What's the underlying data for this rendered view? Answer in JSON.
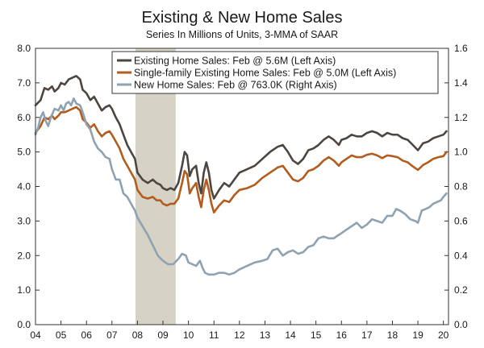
{
  "chart_data": {
    "type": "line",
    "title": "Existing & New Home Sales",
    "subtitle": "Series In Millions of Units, 3-MMA of SAAR",
    "x_ticks": [
      "04",
      "05",
      "06",
      "07",
      "08",
      "09",
      "10",
      "11",
      "12",
      "13",
      "14",
      "15",
      "16",
      "17",
      "18",
      "19",
      "20"
    ],
    "x_range": [
      2004.0,
      2020.2
    ],
    "left_axis": {
      "ylim": [
        0,
        8
      ],
      "ticks": [
        "0.0",
        "1.0",
        "2.0",
        "3.0",
        "4.0",
        "5.0",
        "6.0",
        "7.0",
        "8.0"
      ]
    },
    "right_axis": {
      "ylim": [
        0,
        1.6
      ],
      "ticks": [
        "0.0",
        "0.2",
        "0.4",
        "0.6",
        "0.8",
        "1.0",
        "1.2",
        "1.4",
        "1.6"
      ]
    },
    "recession_shade": {
      "start": 2007.92,
      "end": 2009.5,
      "color": "#d6d2c6"
    },
    "legend": {
      "placement": "top-right"
    },
    "series": [
      {
        "name": "Existing Home Sales: Feb @ 5.6M (Left Axis)",
        "axis": "left",
        "color": "#4d4640",
        "points": [
          [
            2004.0,
            6.35
          ],
          [
            2004.2,
            6.5
          ],
          [
            2004.35,
            6.85
          ],
          [
            2004.5,
            6.8
          ],
          [
            2004.65,
            6.9
          ],
          [
            2004.75,
            6.75
          ],
          [
            2004.9,
            6.85
          ],
          [
            2005.0,
            7.0
          ],
          [
            2005.15,
            6.95
          ],
          [
            2005.3,
            7.1
          ],
          [
            2005.45,
            7.15
          ],
          [
            2005.6,
            7.2
          ],
          [
            2005.75,
            7.1
          ],
          [
            2005.85,
            6.8
          ],
          [
            2006.0,
            6.7
          ],
          [
            2006.15,
            6.5
          ],
          [
            2006.3,
            6.6
          ],
          [
            2006.45,
            6.4
          ],
          [
            2006.6,
            6.2
          ],
          [
            2006.75,
            6.3
          ],
          [
            2006.9,
            6.35
          ],
          [
            2007.0,
            6.25
          ],
          [
            2007.15,
            6.0
          ],
          [
            2007.3,
            5.8
          ],
          [
            2007.45,
            5.5
          ],
          [
            2007.6,
            5.2
          ],
          [
            2007.75,
            5.0
          ],
          [
            2007.9,
            4.8
          ],
          [
            2008.0,
            4.4
          ],
          [
            2008.2,
            4.2
          ],
          [
            2008.4,
            4.1
          ],
          [
            2008.6,
            4.2
          ],
          [
            2008.75,
            4.1
          ],
          [
            2008.9,
            4.05
          ],
          [
            2009.0,
            3.95
          ],
          [
            2009.15,
            3.9
          ],
          [
            2009.3,
            3.95
          ],
          [
            2009.45,
            3.9
          ],
          [
            2009.6,
            4.1
          ],
          [
            2009.75,
            4.6
          ],
          [
            2009.85,
            5.0
          ],
          [
            2009.95,
            4.9
          ],
          [
            2010.05,
            4.3
          ],
          [
            2010.15,
            4.5
          ],
          [
            2010.3,
            4.6
          ],
          [
            2010.4,
            4.1
          ],
          [
            2010.5,
            3.8
          ],
          [
            2010.6,
            4.4
          ],
          [
            2010.7,
            4.7
          ],
          [
            2010.8,
            4.4
          ],
          [
            2010.9,
            3.9
          ],
          [
            2011.0,
            3.65
          ],
          [
            2011.2,
            3.9
          ],
          [
            2011.4,
            4.1
          ],
          [
            2011.6,
            4.0
          ],
          [
            2011.8,
            4.2
          ],
          [
            2012.0,
            4.4
          ],
          [
            2012.3,
            4.5
          ],
          [
            2012.6,
            4.6
          ],
          [
            2012.9,
            4.8
          ],
          [
            2013.2,
            5.0
          ],
          [
            2013.5,
            5.15
          ],
          [
            2013.7,
            5.2
          ],
          [
            2013.9,
            5.0
          ],
          [
            2014.1,
            4.75
          ],
          [
            2014.3,
            4.65
          ],
          [
            2014.5,
            4.8
          ],
          [
            2014.7,
            5.05
          ],
          [
            2014.9,
            5.1
          ],
          [
            2015.1,
            5.2
          ],
          [
            2015.3,
            5.35
          ],
          [
            2015.5,
            5.45
          ],
          [
            2015.7,
            5.35
          ],
          [
            2015.9,
            5.2
          ],
          [
            2016.0,
            5.35
          ],
          [
            2016.2,
            5.4
          ],
          [
            2016.4,
            5.5
          ],
          [
            2016.6,
            5.45
          ],
          [
            2016.8,
            5.45
          ],
          [
            2017.0,
            5.55
          ],
          [
            2017.2,
            5.6
          ],
          [
            2017.4,
            5.55
          ],
          [
            2017.6,
            5.45
          ],
          [
            2017.8,
            5.55
          ],
          [
            2018.0,
            5.5
          ],
          [
            2018.2,
            5.5
          ],
          [
            2018.4,
            5.4
          ],
          [
            2018.6,
            5.35
          ],
          [
            2018.8,
            5.2
          ],
          [
            2019.0,
            5.05
          ],
          [
            2019.2,
            5.25
          ],
          [
            2019.4,
            5.3
          ],
          [
            2019.6,
            5.4
          ],
          [
            2019.8,
            5.45
          ],
          [
            2020.0,
            5.5
          ],
          [
            2020.12,
            5.6
          ]
        ]
      },
      {
        "name": "Single-family Existing Home Sales: Feb @ 5.0M (Left Axis)",
        "axis": "left",
        "color": "#b25c1e",
        "points": [
          [
            2004.0,
            5.55
          ],
          [
            2004.2,
            5.75
          ],
          [
            2004.35,
            6.0
          ],
          [
            2004.5,
            5.95
          ],
          [
            2004.65,
            6.05
          ],
          [
            2004.75,
            5.95
          ],
          [
            2004.9,
            6.05
          ],
          [
            2005.0,
            6.15
          ],
          [
            2005.15,
            6.15
          ],
          [
            2005.3,
            6.2
          ],
          [
            2005.45,
            6.25
          ],
          [
            2005.6,
            6.3
          ],
          [
            2005.75,
            6.2
          ],
          [
            2005.85,
            5.95
          ],
          [
            2006.0,
            5.85
          ],
          [
            2006.15,
            5.7
          ],
          [
            2006.3,
            5.8
          ],
          [
            2006.45,
            5.6
          ],
          [
            2006.6,
            5.45
          ],
          [
            2006.75,
            5.55
          ],
          [
            2006.9,
            5.6
          ],
          [
            2007.0,
            5.5
          ],
          [
            2007.15,
            5.3
          ],
          [
            2007.3,
            5.1
          ],
          [
            2007.45,
            4.8
          ],
          [
            2007.6,
            4.6
          ],
          [
            2007.75,
            4.4
          ],
          [
            2007.9,
            4.2
          ],
          [
            2008.0,
            3.9
          ],
          [
            2008.2,
            3.7
          ],
          [
            2008.4,
            3.65
          ],
          [
            2008.6,
            3.7
          ],
          [
            2008.75,
            3.6
          ],
          [
            2008.9,
            3.6
          ],
          [
            2009.0,
            3.5
          ],
          [
            2009.15,
            3.45
          ],
          [
            2009.3,
            3.5
          ],
          [
            2009.45,
            3.5
          ],
          [
            2009.6,
            3.65
          ],
          [
            2009.75,
            4.1
          ],
          [
            2009.85,
            4.45
          ],
          [
            2009.95,
            4.35
          ],
          [
            2010.05,
            3.8
          ],
          [
            2010.15,
            3.95
          ],
          [
            2010.3,
            4.1
          ],
          [
            2010.4,
            3.7
          ],
          [
            2010.5,
            3.4
          ],
          [
            2010.6,
            3.9
          ],
          [
            2010.7,
            4.2
          ],
          [
            2010.8,
            3.9
          ],
          [
            2010.9,
            3.5
          ],
          [
            2011.0,
            3.25
          ],
          [
            2011.2,
            3.45
          ],
          [
            2011.4,
            3.6
          ],
          [
            2011.6,
            3.55
          ],
          [
            2011.8,
            3.75
          ],
          [
            2012.0,
            3.9
          ],
          [
            2012.3,
            3.95
          ],
          [
            2012.6,
            4.05
          ],
          [
            2012.9,
            4.25
          ],
          [
            2013.2,
            4.4
          ],
          [
            2013.5,
            4.55
          ],
          [
            2013.7,
            4.6
          ],
          [
            2013.9,
            4.4
          ],
          [
            2014.1,
            4.2
          ],
          [
            2014.3,
            4.15
          ],
          [
            2014.5,
            4.25
          ],
          [
            2014.7,
            4.45
          ],
          [
            2014.9,
            4.5
          ],
          [
            2015.1,
            4.6
          ],
          [
            2015.3,
            4.75
          ],
          [
            2015.5,
            4.85
          ],
          [
            2015.7,
            4.75
          ],
          [
            2015.9,
            4.6
          ],
          [
            2016.0,
            4.7
          ],
          [
            2016.2,
            4.8
          ],
          [
            2016.4,
            4.9
          ],
          [
            2016.6,
            4.85
          ],
          [
            2016.8,
            4.85
          ],
          [
            2017.0,
            4.92
          ],
          [
            2017.2,
            4.95
          ],
          [
            2017.4,
            4.9
          ],
          [
            2017.6,
            4.82
          ],
          [
            2017.8,
            4.9
          ],
          [
            2018.0,
            4.88
          ],
          [
            2018.2,
            4.85
          ],
          [
            2018.4,
            4.75
          ],
          [
            2018.6,
            4.7
          ],
          [
            2018.8,
            4.58
          ],
          [
            2019.0,
            4.48
          ],
          [
            2019.2,
            4.62
          ],
          [
            2019.4,
            4.7
          ],
          [
            2019.6,
            4.8
          ],
          [
            2019.8,
            4.85
          ],
          [
            2020.0,
            4.88
          ],
          [
            2020.12,
            5.0
          ]
        ]
      },
      {
        "name": "New Home Sales: Feb @ 763.0K (Right Axis)",
        "axis": "right",
        "color": "#8fa2b2",
        "points": [
          [
            2004.0,
            1.1
          ],
          [
            2004.1,
            1.14
          ],
          [
            2004.2,
            1.2
          ],
          [
            2004.3,
            1.23
          ],
          [
            2004.4,
            1.18
          ],
          [
            2004.5,
            1.15
          ],
          [
            2004.6,
            1.2
          ],
          [
            2004.75,
            1.25
          ],
          [
            2004.9,
            1.24
          ],
          [
            2005.0,
            1.27
          ],
          [
            2005.1,
            1.24
          ],
          [
            2005.2,
            1.28
          ],
          [
            2005.3,
            1.29
          ],
          [
            2005.4,
            1.27
          ],
          [
            2005.5,
            1.31
          ],
          [
            2005.6,
            1.28
          ],
          [
            2005.75,
            1.27
          ],
          [
            2005.85,
            1.23
          ],
          [
            2006.0,
            1.16
          ],
          [
            2006.15,
            1.13
          ],
          [
            2006.3,
            1.06
          ],
          [
            2006.45,
            1.02
          ],
          [
            2006.6,
            1.0
          ],
          [
            2006.75,
            0.97
          ],
          [
            2006.9,
            0.96
          ],
          [
            2007.0,
            0.9
          ],
          [
            2007.15,
            0.84
          ],
          [
            2007.3,
            0.84
          ],
          [
            2007.45,
            0.76
          ],
          [
            2007.6,
            0.74
          ],
          [
            2007.75,
            0.7
          ],
          [
            2007.9,
            0.66
          ],
          [
            2008.0,
            0.62
          ],
          [
            2008.2,
            0.57
          ],
          [
            2008.4,
            0.52
          ],
          [
            2008.6,
            0.46
          ],
          [
            2008.8,
            0.4
          ],
          [
            2009.0,
            0.37
          ],
          [
            2009.2,
            0.35
          ],
          [
            2009.4,
            0.35
          ],
          [
            2009.6,
            0.38
          ],
          [
            2009.75,
            0.41
          ],
          [
            2009.9,
            0.4
          ],
          [
            2010.0,
            0.36
          ],
          [
            2010.15,
            0.35
          ],
          [
            2010.3,
            0.34
          ],
          [
            2010.45,
            0.37
          ],
          [
            2010.55,
            0.33
          ],
          [
            2010.65,
            0.3
          ],
          [
            2010.8,
            0.29
          ],
          [
            2011.0,
            0.29
          ],
          [
            2011.2,
            0.3
          ],
          [
            2011.4,
            0.3
          ],
          [
            2011.6,
            0.29
          ],
          [
            2011.8,
            0.3
          ],
          [
            2012.0,
            0.32
          ],
          [
            2012.3,
            0.34
          ],
          [
            2012.6,
            0.36
          ],
          [
            2012.9,
            0.37
          ],
          [
            2013.1,
            0.38
          ],
          [
            2013.3,
            0.43
          ],
          [
            2013.5,
            0.44
          ],
          [
            2013.7,
            0.4
          ],
          [
            2013.9,
            0.42
          ],
          [
            2014.1,
            0.43
          ],
          [
            2014.3,
            0.41
          ],
          [
            2014.5,
            0.42
          ],
          [
            2014.7,
            0.45
          ],
          [
            2014.9,
            0.46
          ],
          [
            2015.1,
            0.5
          ],
          [
            2015.3,
            0.51
          ],
          [
            2015.5,
            0.5
          ],
          [
            2015.7,
            0.5
          ],
          [
            2015.9,
            0.52
          ],
          [
            2016.0,
            0.53
          ],
          [
            2016.2,
            0.55
          ],
          [
            2016.4,
            0.57
          ],
          [
            2016.6,
            0.59
          ],
          [
            2016.8,
            0.56
          ],
          [
            2017.0,
            0.58
          ],
          [
            2017.2,
            0.61
          ],
          [
            2017.4,
            0.6
          ],
          [
            2017.6,
            0.59
          ],
          [
            2017.8,
            0.63
          ],
          [
            2018.0,
            0.63
          ],
          [
            2018.15,
            0.67
          ],
          [
            2018.3,
            0.66
          ],
          [
            2018.5,
            0.64
          ],
          [
            2018.7,
            0.61
          ],
          [
            2018.9,
            0.6
          ],
          [
            2019.0,
            0.59
          ],
          [
            2019.15,
            0.66
          ],
          [
            2019.3,
            0.67
          ],
          [
            2019.45,
            0.68
          ],
          [
            2019.6,
            0.7
          ],
          [
            2019.75,
            0.71
          ],
          [
            2019.9,
            0.72
          ],
          [
            2020.0,
            0.74
          ],
          [
            2020.12,
            0.76
          ]
        ]
      }
    ]
  }
}
